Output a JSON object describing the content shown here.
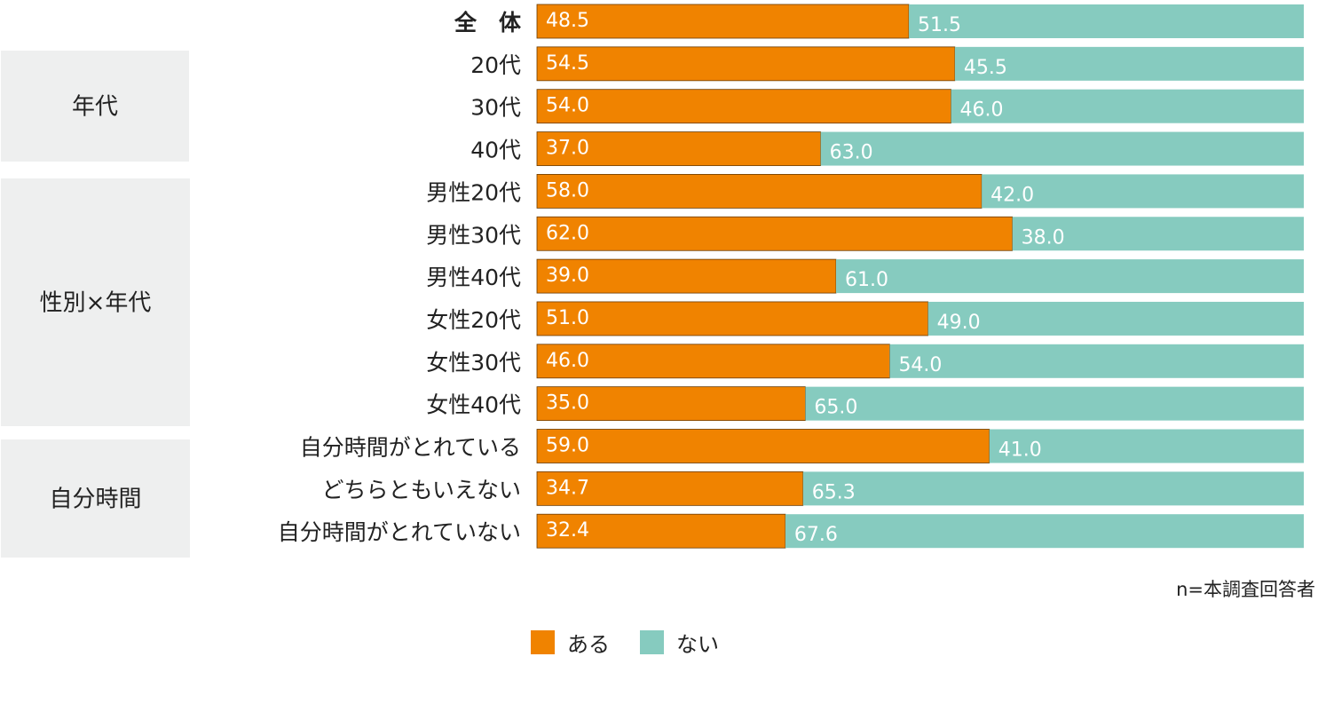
{
  "chart_data": {
    "type": "bar",
    "stacked": true,
    "orientation": "horizontal",
    "categories": [
      "全　体",
      "20代",
      "30代",
      "40代",
      "男性20代",
      "男性30代",
      "男性40代",
      "女性20代",
      "女性30代",
      "女性40代",
      "自分時間がとれている",
      "どちらともいえない",
      "自分時間がとれていない"
    ],
    "groups": [
      {
        "label": "年代"
      },
      {
        "label": "性別×年代"
      },
      {
        "label": "自分時間"
      }
    ],
    "series": [
      {
        "name": "ある",
        "color": "#f08300",
        "values": [
          48.5,
          54.5,
          54.0,
          37.0,
          58.0,
          62.0,
          39.0,
          51.0,
          46.0,
          35.0,
          59.0,
          34.7,
          32.4
        ],
        "labels": [
          "48.5",
          "54.5",
          "54.0",
          "37.0",
          "58.0",
          "62.0",
          "39.0",
          "51.0",
          "46.0",
          "35.0",
          "59.0",
          "34.7",
          "32.4"
        ]
      },
      {
        "name": "ない",
        "color": "#86cbbf",
        "values": [
          51.5,
          45.5,
          46.0,
          63.0,
          42.0,
          38.0,
          61.0,
          49.0,
          54.0,
          65.0,
          41.0,
          65.3,
          67.6
        ],
        "labels": [
          "51.5",
          "45.5",
          "46.0",
          "63.0",
          "42.0",
          "38.0",
          "61.0",
          "49.0",
          "54.0",
          "65.0",
          "41.0",
          "65.3",
          "67.6"
        ]
      }
    ],
    "xlim": [
      0,
      100
    ],
    "note": "n=本調査回答者",
    "legend_position": "bottom-center"
  }
}
